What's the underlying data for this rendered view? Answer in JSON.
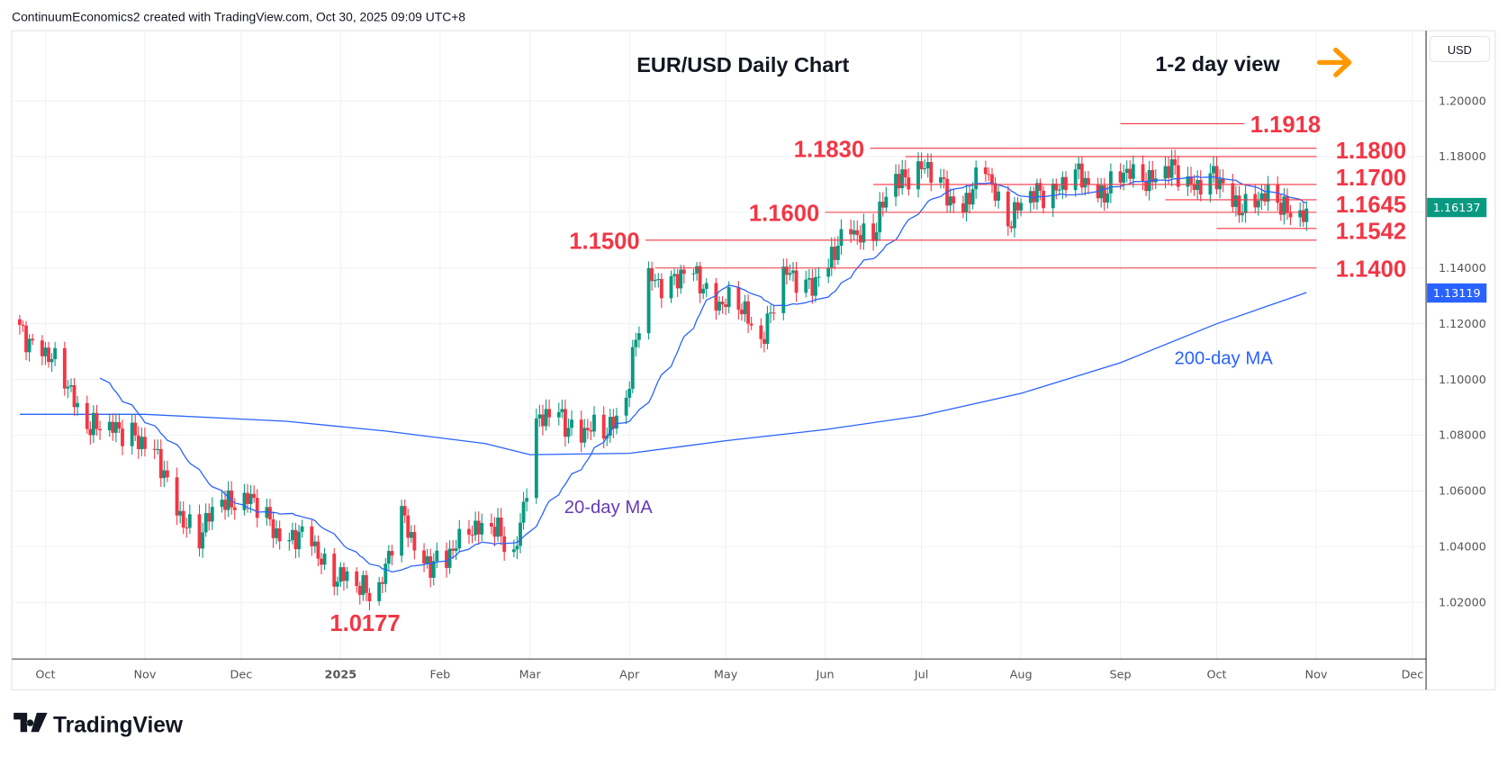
{
  "header": {
    "caption": "ContinuumEconomics2 created with TradingView.com, Oct 30, 2025 09:09 UTC+8"
  },
  "branding": {
    "logo_text": "TradingView"
  },
  "currency_button": "USD",
  "colors": {
    "up": "#089981",
    "down": "#f23645",
    "level": "#f23645",
    "ma20": "#2962ff",
    "ma200": "#2962ff",
    "arrow": "#ff9800",
    "ma20_label": "#673ab7"
  },
  "chart_data": {
    "type": "candlestick",
    "title": "EUR/USD Daily Chart",
    "subtitle": "1-2 day view",
    "view_direction": "sideways",
    "ylabel": "USD",
    "ylim": [
      1.0,
      1.215
    ],
    "yticks": [
      "1.20000",
      "1.18000",
      "1.14000"
    ],
    "yticks_all": [
      1.2,
      1.18,
      1.16,
      1.14,
      1.12,
      1.1,
      1.08,
      1.06,
      1.04,
      1.02
    ],
    "xticks": [
      {
        "label": "Oct",
        "date": "2024-10-01",
        "bold": false
      },
      {
        "label": "Nov",
        "date": "2024-11-01",
        "bold": false
      },
      {
        "label": "Dec",
        "date": "2024-12-01",
        "bold": false
      },
      {
        "label": "2025",
        "date": "2025-01-01",
        "bold": true
      },
      {
        "label": "Feb",
        "date": "2025-02-01",
        "bold": false
      },
      {
        "label": "Mar",
        "date": "2025-03-01",
        "bold": false
      },
      {
        "label": "Apr",
        "date": "2025-04-01",
        "bold": false
      },
      {
        "label": "May",
        "date": "2025-05-01",
        "bold": false
      },
      {
        "label": "Jun",
        "date": "2025-06-01",
        "bold": false
      },
      {
        "label": "Jul",
        "date": "2025-07-01",
        "bold": false
      },
      {
        "label": "Aug",
        "date": "2025-08-01",
        "bold": false
      },
      {
        "label": "Sep",
        "date": "2025-09-01",
        "bold": false
      },
      {
        "label": "Oct",
        "date": "2025-10-01",
        "bold": false
      },
      {
        "label": "Nov",
        "date": "2025-11-01",
        "bold": false
      },
      {
        "label": "Dec",
        "date": "2025-12-01",
        "bold": false
      }
    ],
    "weekly_closes": [
      [
        "2024-09-23",
        1.116
      ],
      [
        "2024-09-30",
        1.113
      ],
      [
        "2024-10-07",
        1.098
      ],
      [
        "2024-10-14",
        1.086
      ],
      [
        "2024-10-21",
        1.08
      ],
      [
        "2024-10-28",
        1.083
      ],
      [
        "2024-11-04",
        1.072
      ],
      [
        "2024-11-11",
        1.055
      ],
      [
        "2024-11-18",
        1.042
      ],
      [
        "2024-11-25",
        1.058
      ],
      [
        "2024-12-02",
        1.057
      ],
      [
        "2024-12-09",
        1.05
      ],
      [
        "2024-12-16",
        1.043
      ],
      [
        "2024-12-23",
        1.041
      ],
      [
        "2024-12-30",
        1.031
      ],
      [
        "2025-01-06",
        1.024
      ],
      [
        "2025-01-13",
        1.027
      ],
      [
        "2025-01-20",
        1.049
      ],
      [
        "2025-01-27",
        1.036
      ],
      [
        "2025-02-03",
        1.033
      ],
      [
        "2025-02-10",
        1.049
      ],
      [
        "2025-02-17",
        1.046
      ],
      [
        "2025-02-24",
        1.037
      ],
      [
        "2025-03-03",
        1.083
      ],
      [
        "2025-03-10",
        1.088
      ],
      [
        "2025-03-17",
        1.081
      ],
      [
        "2025-03-24",
        1.08
      ],
      [
        "2025-03-31",
        1.095
      ],
      [
        "2025-04-07",
        1.135
      ],
      [
        "2025-04-14",
        1.137
      ],
      [
        "2025-04-21",
        1.136
      ],
      [
        "2025-04-28",
        1.13
      ],
      [
        "2025-05-05",
        1.125
      ],
      [
        "2025-05-12",
        1.116
      ],
      [
        "2025-05-19",
        1.136
      ],
      [
        "2025-05-26",
        1.135
      ],
      [
        "2025-06-02",
        1.14
      ],
      [
        "2025-06-09",
        1.155
      ],
      [
        "2025-06-16",
        1.152
      ],
      [
        "2025-06-23",
        1.172
      ],
      [
        "2025-06-30",
        1.177
      ],
      [
        "2025-07-07",
        1.169
      ],
      [
        "2025-07-14",
        1.163
      ],
      [
        "2025-07-21",
        1.174
      ],
      [
        "2025-07-28",
        1.159
      ],
      [
        "2025-08-04",
        1.164
      ],
      [
        "2025-08-11",
        1.17
      ],
      [
        "2025-08-18",
        1.172
      ],
      [
        "2025-08-25",
        1.168
      ],
      [
        "2025-09-01",
        1.172
      ],
      [
        "2025-09-08",
        1.173
      ],
      [
        "2025-09-15",
        1.175
      ],
      [
        "2025-09-22",
        1.17
      ],
      [
        "2025-09-29",
        1.174
      ],
      [
        "2025-10-06",
        1.162
      ],
      [
        "2025-10-13",
        1.166
      ],
      [
        "2025-10-20",
        1.162
      ],
      [
        "2025-10-29",
        1.1614
      ]
    ],
    "ma200_points": [
      [
        "2024-09-23",
        1.0875
      ],
      [
        "2024-11-01",
        1.0875
      ],
      [
        "2024-12-15",
        1.085
      ],
      [
        "2025-01-15",
        1.0815
      ],
      [
        "2025-02-15",
        1.077
      ],
      [
        "2025-03-01",
        1.073
      ],
      [
        "2025-04-01",
        1.0735
      ],
      [
        "2025-05-01",
        1.078
      ],
      [
        "2025-06-01",
        1.082
      ],
      [
        "2025-07-01",
        1.087
      ],
      [
        "2025-08-01",
        1.095
      ],
      [
        "2025-09-01",
        1.106
      ],
      [
        "2025-10-01",
        1.12
      ],
      [
        "2025-10-29",
        1.1312
      ]
    ],
    "levels": [
      {
        "value": 1.1918,
        "label": "1.1918",
        "side": "right",
        "from": "2025-09-01"
      },
      {
        "value": 1.183,
        "label": "1.1830",
        "side": "left",
        "from": "2025-06-15"
      },
      {
        "value": 1.18,
        "label": "1.1800",
        "side": "right",
        "from": "2025-06-26"
      },
      {
        "value": 1.17,
        "label": "1.1700",
        "side": "right",
        "from": "2025-06-16"
      },
      {
        "value": 1.1645,
        "label": "1.1645",
        "side": "right",
        "from": "2025-09-15"
      },
      {
        "value": 1.16,
        "label": "1.1600",
        "side": "left",
        "from": "2025-06-01"
      },
      {
        "value": 1.1542,
        "label": "1.1542",
        "side": "right",
        "from": "2025-10-01"
      },
      {
        "value": 1.15,
        "label": "1.1500",
        "side": "left",
        "from": "2025-04-06"
      },
      {
        "value": 1.14,
        "label": "1.1400",
        "side": "right",
        "from": "2025-04-09"
      }
    ],
    "annotations": {
      "low": "1.0177",
      "ma200_label": "200-day MA",
      "ma20_label": "20-day MA"
    },
    "last_price": "1.16137",
    "ma200_value": "1.13119"
  }
}
